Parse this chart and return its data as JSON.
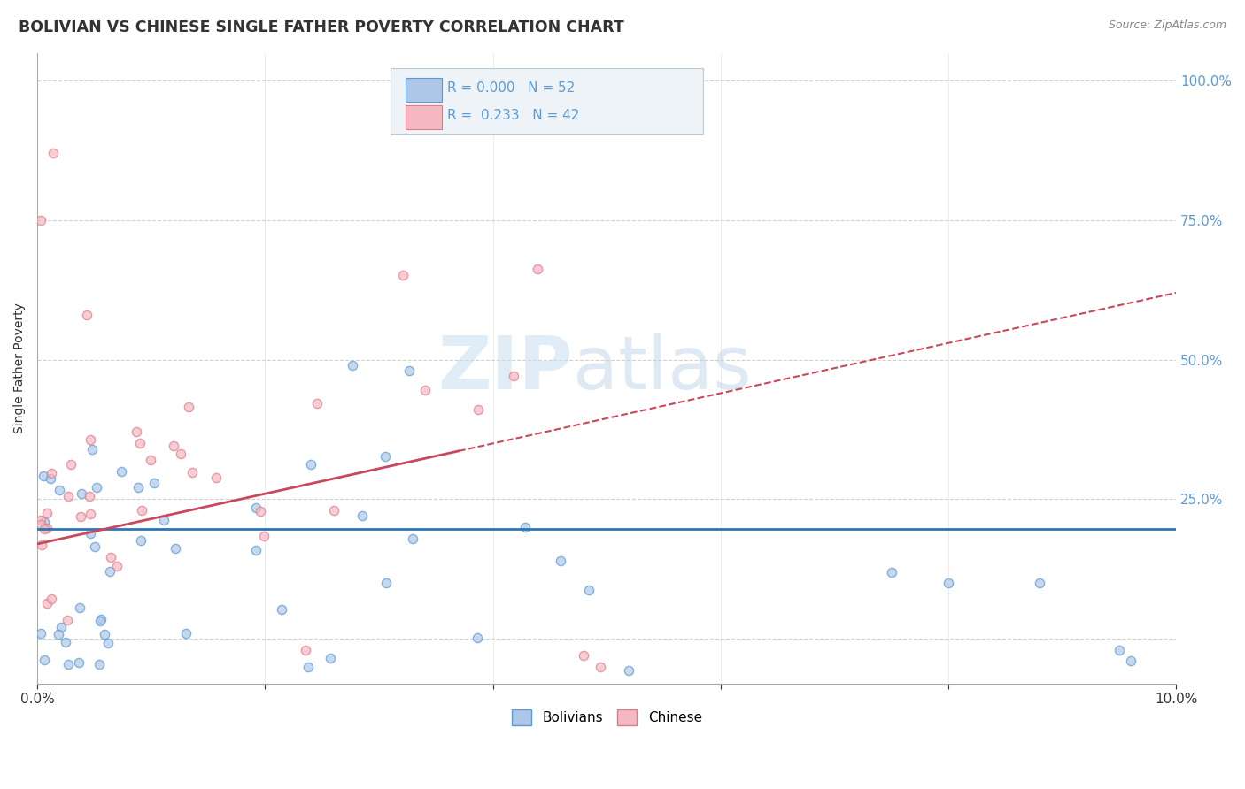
{
  "title": "BOLIVIAN VS CHINESE SINGLE FATHER POVERTY CORRELATION CHART",
  "source": "Source: ZipAtlas.com",
  "ylabel": "Single Father Poverty",
  "watermark_zip": "ZIP",
  "watermark_atlas": "atlas",
  "ytick_labels": [
    "",
    "25.0%",
    "50.0%",
    "75.0%",
    "100.0%"
  ],
  "ytick_vals": [
    0.0,
    0.25,
    0.5,
    0.75,
    1.0
  ],
  "xlim": [
    0.0,
    0.1
  ],
  "ylim": [
    -0.08,
    1.05
  ],
  "dot_size": 55,
  "bolivians_color": "#aec6e8",
  "bolivians_edge": "#5b9bd5",
  "chinese_color": "#f4b8c1",
  "chinese_edge": "#e07a8a",
  "trend_bolivians_color": "#2e75b6",
  "trend_chinese_color": "#c9485b",
  "background_color": "#ffffff",
  "grid_color": "#cccccc",
  "axis_color": "#aaaaaa",
  "tick_color": "#5b9bd5",
  "legend_text_color": "#5b9bd5",
  "legend_label_color": "#333333"
}
